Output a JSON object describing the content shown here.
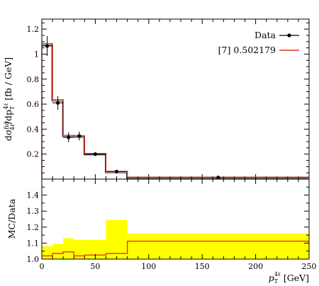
{
  "chart_data": [
    {
      "panel": "main",
      "type": "line",
      "ylabel": "dσ^fid_4ℓ / dp_T^4ℓ [fb / GeV]",
      "ylabel_parts": {
        "main": "dσ",
        "sup": "fid",
        "sub": "4ℓ",
        "mid": "/dp",
        "sub2": "T",
        "sup2": "4ℓ",
        "unit": " [fb / GeV]"
      },
      "xlim": [
        0,
        250
      ],
      "ylim": [
        0,
        1.28
      ],
      "yticks": [
        "0.2",
        "0.4",
        "0.6",
        "0.8",
        "1",
        "1.2"
      ],
      "ytick_values": [
        0.2,
        0.4,
        0.6,
        0.8,
        1.0,
        1.2
      ],
      "grid": false,
      "legend_placement": "top-right",
      "series": [
        {
          "name": "Data",
          "kind": "points",
          "color": "#000000",
          "points": [
            {
              "x": 5,
              "y": 1.065,
              "xerr": [
                0,
                10
              ],
              "yerr": 0.08
            },
            {
              "x": 15,
              "y": 0.61,
              "xerr": [
                10,
                20
              ],
              "yerr": 0.055
            },
            {
              "x": 25,
              "y": 0.335,
              "xerr": [
                20,
                30
              ],
              "yerr": 0.04
            },
            {
              "x": 35,
              "y": 0.345,
              "xerr": [
                30,
                40
              ],
              "yerr": 0.035
            },
            {
              "x": 50,
              "y": 0.2,
              "xerr": [
                40,
                60
              ],
              "yerr": 0.015
            },
            {
              "x": 70,
              "y": 0.06,
              "xerr": [
                60,
                80
              ],
              "yerr": 0.006
            },
            {
              "x": 165,
              "y": 0.013,
              "xerr": [
                80,
                250
              ],
              "yerr": 0.002
            }
          ]
        },
        {
          "name": "[7] 0.502179",
          "kind": "histogram",
          "color": "#e8351e",
          "bins": [
            {
              "lo": 0,
              "hi": 10,
              "y": 1.085
            },
            {
              "lo": 10,
              "hi": 20,
              "y": 0.635
            },
            {
              "lo": 20,
              "hi": 30,
              "y": 0.35
            },
            {
              "lo": 30,
              "hi": 40,
              "y": 0.345
            },
            {
              "lo": 40,
              "hi": 60,
              "y": 0.205
            },
            {
              "lo": 60,
              "hi": 80,
              "y": 0.062
            },
            {
              "lo": 80,
              "hi": 250,
              "y": 0.015
            }
          ]
        }
      ]
    },
    {
      "panel": "ratio",
      "type": "line",
      "ylabel": "MC/Data",
      "xlabel": "p_T^4ℓ [GeV]",
      "xlabel_parts": {
        "main": "p",
        "sub": "T",
        "sup": "4ℓ",
        "unit": " [GeV]"
      },
      "xlim": [
        0,
        250
      ],
      "ylim": [
        1.0,
        1.5
      ],
      "xticks": [
        "0",
        "50",
        "100",
        "150",
        "200",
        "250"
      ],
      "xtick_values": [
        0,
        50,
        100,
        150,
        200,
        250
      ],
      "yticks": [
        "1.0",
        "1.1",
        "1.2",
        "1.3",
        "1.4"
      ],
      "ytick_values": [
        1.0,
        1.1,
        1.2,
        1.3,
        1.4
      ],
      "band_color": "#ffff00",
      "band": [
        {
          "lo": 0,
          "hi": 10,
          "y": 1.08
        },
        {
          "lo": 10,
          "hi": 20,
          "y": 1.095
        },
        {
          "lo": 20,
          "hi": 30,
          "y": 1.13
        },
        {
          "lo": 30,
          "hi": 40,
          "y": 1.12
        },
        {
          "lo": 40,
          "hi": 60,
          "y": 1.12
        },
        {
          "lo": 60,
          "hi": 80,
          "y": 1.245
        },
        {
          "lo": 80,
          "hi": 250,
          "y": 1.16
        }
      ],
      "ratio_line": {
        "color": "#e8351e",
        "bins": [
          {
            "lo": 0,
            "hi": 10,
            "y": 1.02
          },
          {
            "lo": 10,
            "hi": 20,
            "y": 1.035
          },
          {
            "lo": 20,
            "hi": 30,
            "y": 1.045
          },
          {
            "lo": 30,
            "hi": 40,
            "y": 1.02
          },
          {
            "lo": 40,
            "hi": 60,
            "y": 1.025
          },
          {
            "lo": 60,
            "hi": 80,
            "y": 1.035
          },
          {
            "lo": 80,
            "hi": 250,
            "y": 1.112
          }
        ]
      }
    }
  ]
}
